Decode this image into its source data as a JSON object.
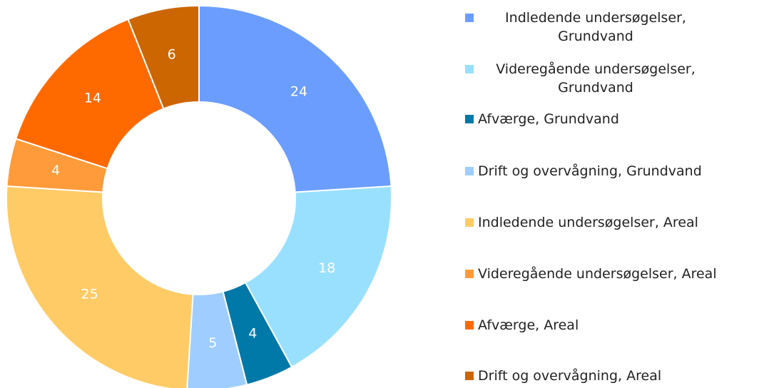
{
  "chart_data": {
    "type": "donut",
    "categories": [
      "Indledende undersøgelser, Grundvand",
      "Videregående undersøgelser, Grundvand",
      "Afværge, Grundvand",
      "Drift og overvågning, Grundvand",
      "Indledende undersøgelser, Areal",
      "Videregående undersøgelser, Areal",
      "Afværge, Areal",
      "Drift og overvågning, Areal"
    ],
    "values": [
      24,
      18,
      4,
      5,
      25,
      4,
      14,
      6
    ],
    "colors": [
      "#6b9dff",
      "#99e0ff",
      "#0078a8",
      "#9fcdff",
      "#ffcb66",
      "#ff9b3a",
      "#ff6a00",
      "#cc6600"
    ],
    "legend": "right"
  }
}
